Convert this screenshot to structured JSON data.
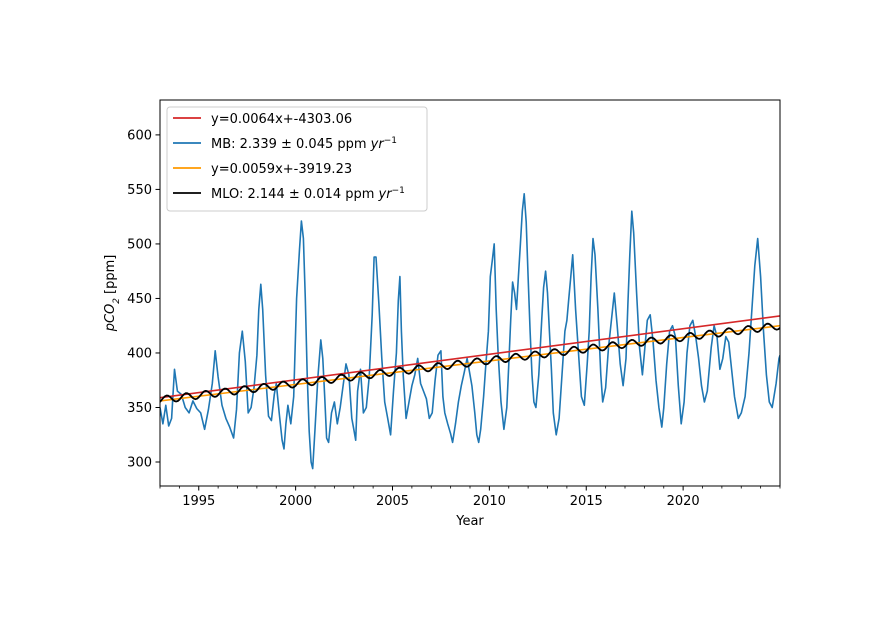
{
  "chart_data": {
    "type": "line",
    "xlabel": "Year",
    "ylabel_base": "pCO",
    "ylabel_sub": "2",
    "ylabel_units": "[ppm]",
    "xlim": [
      1993.0,
      2025.0
    ],
    "ylim": [
      278,
      632
    ],
    "xticks": [
      1995,
      2000,
      2005,
      2010,
      2015,
      2020
    ],
    "yticks": [
      300,
      350,
      400,
      450,
      500,
      550,
      600
    ],
    "grid": false,
    "legend_position": "top-left",
    "legend": [
      {
        "key": "mb_fit",
        "text": "y=0.0064x+-4303.06"
      },
      {
        "key": "mb",
        "text": "MB: 2.339 ± 0.045 ppm ",
        "unit": "yr",
        "sup": "−1"
      },
      {
        "key": "mlo_fit",
        "text": "y=0.0059x+-3919.23"
      },
      {
        "key": "mlo",
        "text": "MLO: 2.144 ± 0.014 ppm ",
        "unit": "yr",
        "sup": "−1"
      }
    ],
    "series": [
      {
        "key": "mb",
        "name": "MB: 2.339 ± 0.045 ppm yr−1",
        "color": "#1f77b4",
        "points": [
          [
            1993.0,
            350
          ],
          [
            1993.15,
            335
          ],
          [
            1993.3,
            352
          ],
          [
            1993.45,
            333
          ],
          [
            1993.6,
            340
          ],
          [
            1993.75,
            385
          ],
          [
            1993.9,
            365
          ],
          [
            1994.1,
            362
          ],
          [
            1994.3,
            350
          ],
          [
            1994.5,
            345
          ],
          [
            1994.7,
            356
          ],
          [
            1994.9,
            349
          ],
          [
            1995.1,
            345
          ],
          [
            1995.3,
            330
          ],
          [
            1995.5,
            348
          ],
          [
            1995.7,
            372
          ],
          [
            1995.85,
            402
          ],
          [
            1996.0,
            378
          ],
          [
            1996.2,
            352
          ],
          [
            1996.4,
            340
          ],
          [
            1996.6,
            332
          ],
          [
            1996.8,
            322
          ],
          [
            1996.95,
            348
          ],
          [
            1997.1,
            400
          ],
          [
            1997.25,
            420
          ],
          [
            1997.4,
            392
          ],
          [
            1997.55,
            345
          ],
          [
            1997.7,
            350
          ],
          [
            1997.85,
            368
          ],
          [
            1998.0,
            398
          ],
          [
            1998.1,
            440
          ],
          [
            1998.2,
            463
          ],
          [
            1998.3,
            440
          ],
          [
            1998.45,
            380
          ],
          [
            1998.6,
            342
          ],
          [
            1998.75,
            338
          ],
          [
            1998.9,
            362
          ],
          [
            1999.0,
            372
          ],
          [
            1999.15,
            345
          ],
          [
            1999.3,
            320
          ],
          [
            1999.4,
            312
          ],
          [
            1999.5,
            335
          ],
          [
            1999.6,
            352
          ],
          [
            1999.75,
            335
          ],
          [
            1999.9,
            360
          ],
          [
            2000.05,
            450
          ],
          [
            2000.2,
            495
          ],
          [
            2000.3,
            521
          ],
          [
            2000.4,
            505
          ],
          [
            2000.5,
            450
          ],
          [
            2000.6,
            380
          ],
          [
            2000.7,
            328
          ],
          [
            2000.8,
            300
          ],
          [
            2000.88,
            294
          ],
          [
            2001.0,
            330
          ],
          [
            2001.15,
            378
          ],
          [
            2001.3,
            412
          ],
          [
            2001.4,
            395
          ],
          [
            2001.5,
            360
          ],
          [
            2001.6,
            322
          ],
          [
            2001.7,
            318
          ],
          [
            2001.85,
            345
          ],
          [
            2002.0,
            355
          ],
          [
            2002.15,
            335
          ],
          [
            2002.3,
            350
          ],
          [
            2002.45,
            370
          ],
          [
            2002.6,
            390
          ],
          [
            2002.75,
            380
          ],
          [
            2002.9,
            340
          ],
          [
            2003.0,
            330
          ],
          [
            2003.1,
            320
          ],
          [
            2003.2,
            365
          ],
          [
            2003.35,
            385
          ],
          [
            2003.5,
            345
          ],
          [
            2003.65,
            350
          ],
          [
            2003.8,
            378
          ],
          [
            2003.95,
            435
          ],
          [
            2004.05,
            488
          ],
          [
            2004.15,
            488
          ],
          [
            2004.3,
            445
          ],
          [
            2004.45,
            395
          ],
          [
            2004.6,
            355
          ],
          [
            2004.75,
            340
          ],
          [
            2004.9,
            325
          ],
          [
            2005.05,
            365
          ],
          [
            2005.2,
            400
          ],
          [
            2005.3,
            448
          ],
          [
            2005.38,
            470
          ],
          [
            2005.46,
            420
          ],
          [
            2005.55,
            380
          ],
          [
            2005.7,
            340
          ],
          [
            2005.85,
            355
          ],
          [
            2006.0,
            370
          ],
          [
            2006.15,
            380
          ],
          [
            2006.3,
            395
          ],
          [
            2006.45,
            372
          ],
          [
            2006.6,
            365
          ],
          [
            2006.75,
            358
          ],
          [
            2006.9,
            340
          ],
          [
            2007.05,
            345
          ],
          [
            2007.2,
            375
          ],
          [
            2007.35,
            398
          ],
          [
            2007.5,
            402
          ],
          [
            2007.6,
            360
          ],
          [
            2007.7,
            345
          ],
          [
            2007.85,
            335
          ],
          [
            2008.0,
            326
          ],
          [
            2008.1,
            318
          ],
          [
            2008.25,
            335
          ],
          [
            2008.4,
            355
          ],
          [
            2008.55,
            370
          ],
          [
            2008.7,
            382
          ],
          [
            2008.85,
            395
          ],
          [
            2009.0,
            380
          ],
          [
            2009.1,
            370
          ],
          [
            2009.25,
            345
          ],
          [
            2009.35,
            325
          ],
          [
            2009.45,
            318
          ],
          [
            2009.55,
            330
          ],
          [
            2009.7,
            360
          ],
          [
            2009.8,
            385
          ],
          [
            2009.95,
            420
          ],
          [
            2010.05,
            470
          ],
          [
            2010.15,
            485
          ],
          [
            2010.25,
            500
          ],
          [
            2010.35,
            440
          ],
          [
            2010.45,
            400
          ],
          [
            2010.6,
            355
          ],
          [
            2010.75,
            330
          ],
          [
            2010.9,
            350
          ],
          [
            2011.0,
            390
          ],
          [
            2011.1,
            430
          ],
          [
            2011.2,
            465
          ],
          [
            2011.3,
            455
          ],
          [
            2011.4,
            440
          ],
          [
            2011.5,
            470
          ],
          [
            2011.6,
            500
          ],
          [
            2011.7,
            530
          ],
          [
            2011.8,
            546
          ],
          [
            2011.9,
            520
          ],
          [
            2012.0,
            470
          ],
          [
            2012.1,
            420
          ],
          [
            2012.2,
            380
          ],
          [
            2012.3,
            355
          ],
          [
            2012.4,
            350
          ],
          [
            2012.55,
            380
          ],
          [
            2012.7,
            430
          ],
          [
            2012.8,
            460
          ],
          [
            2012.9,
            475
          ],
          [
            2013.0,
            455
          ],
          [
            2013.1,
            420
          ],
          [
            2013.2,
            385
          ],
          [
            2013.3,
            345
          ],
          [
            2013.45,
            325
          ],
          [
            2013.6,
            340
          ],
          [
            2013.75,
            380
          ],
          [
            2013.9,
            420
          ],
          [
            2014.0,
            430
          ],
          [
            2014.1,
            450
          ],
          [
            2014.2,
            470
          ],
          [
            2014.3,
            490
          ],
          [
            2014.45,
            440
          ],
          [
            2014.6,
            400
          ],
          [
            2014.75,
            360
          ],
          [
            2014.9,
            352
          ],
          [
            2015.05,
            390
          ],
          [
            2015.15,
            420
          ],
          [
            2015.25,
            470
          ],
          [
            2015.35,
            505
          ],
          [
            2015.45,
            490
          ],
          [
            2015.6,
            440
          ],
          [
            2015.75,
            380
          ],
          [
            2015.85,
            355
          ],
          [
            2016.0,
            368
          ],
          [
            2016.15,
            405
          ],
          [
            2016.3,
            430
          ],
          [
            2016.45,
            455
          ],
          [
            2016.6,
            425
          ],
          [
            2016.75,
            390
          ],
          [
            2016.9,
            370
          ],
          [
            2017.05,
            395
          ],
          [
            2017.15,
            445
          ],
          [
            2017.25,
            490
          ],
          [
            2017.35,
            530
          ],
          [
            2017.45,
            510
          ],
          [
            2017.6,
            455
          ],
          [
            2017.75,
            405
          ],
          [
            2017.9,
            380
          ],
          [
            2018.0,
            400
          ],
          [
            2018.15,
            430
          ],
          [
            2018.3,
            435
          ],
          [
            2018.45,
            410
          ],
          [
            2018.6,
            375
          ],
          [
            2018.75,
            350
          ],
          [
            2018.9,
            332
          ],
          [
            2019.0,
            350
          ],
          [
            2019.15,
            390
          ],
          [
            2019.3,
            420
          ],
          [
            2019.45,
            425
          ],
          [
            2019.6,
            415
          ],
          [
            2019.75,
            370
          ],
          [
            2019.9,
            335
          ],
          [
            2020.05,
            355
          ],
          [
            2020.2,
            400
          ],
          [
            2020.35,
            425
          ],
          [
            2020.5,
            430
          ],
          [
            2020.65,
            415
          ],
          [
            2020.8,
            395
          ],
          [
            2020.95,
            370
          ],
          [
            2021.1,
            355
          ],
          [
            2021.25,
            365
          ],
          [
            2021.45,
            405
          ],
          [
            2021.6,
            425
          ],
          [
            2021.75,
            415
          ],
          [
            2021.9,
            385
          ],
          [
            2022.05,
            395
          ],
          [
            2022.2,
            415
          ],
          [
            2022.35,
            410
          ],
          [
            2022.5,
            385
          ],
          [
            2022.65,
            360
          ],
          [
            2022.85,
            340
          ],
          [
            2023.0,
            345
          ],
          [
            2023.2,
            360
          ],
          [
            2023.4,
            400
          ],
          [
            2023.55,
            440
          ],
          [
            2023.7,
            480
          ],
          [
            2023.85,
            505
          ],
          [
            2024.0,
            470
          ],
          [
            2024.15,
            420
          ],
          [
            2024.3,
            380
          ],
          [
            2024.45,
            355
          ],
          [
            2024.6,
            350
          ],
          [
            2024.8,
            372
          ],
          [
            2024.95,
            395
          ],
          [
            2025.0,
            398
          ]
        ]
      },
      {
        "key": "mb_fit",
        "name": "y=0.0064x+-4303.06",
        "color": "#d62728",
        "points": [
          [
            1993.0,
            359
          ],
          [
            2025.0,
            434
          ]
        ]
      },
      {
        "key": "mlo_fit",
        "name": "y=0.0059x+-3919.23",
        "color": "#ff9900",
        "points": [
          [
            1993.0,
            356
          ],
          [
            2025.0,
            425
          ]
        ]
      },
      {
        "key": "mlo",
        "name": "MLO: 2.144 ± 0.014 ppm yr−1",
        "color": "#000000",
        "trend_start": 357,
        "trend_end": 425,
        "seasonal_amplitude": 3.3
      }
    ]
  }
}
